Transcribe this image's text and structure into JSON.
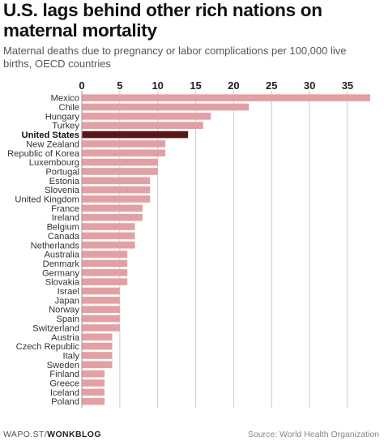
{
  "header": {
    "title": "U.S. lags behind other rich nations on maternal mortality",
    "subtitle": "Maternal deaths due to pregnancy or labor complications per 100,000 live births, OECD countries"
  },
  "footer": {
    "brand_prefix": "WAPO.ST/",
    "brand_name": "WONKBLOG",
    "source": "Source: World Health Organization"
  },
  "colors": {
    "bar": "#e3a0a4",
    "highlight": "#5c1519",
    "gridline": "#cccccc"
  },
  "chart_data": {
    "type": "bar",
    "orientation": "horizontal",
    "title": "U.S. lags behind other rich nations on maternal mortality",
    "subtitle": "Maternal deaths due to pregnancy or labor complications per 100,000 live births, OECD countries",
    "xlim": [
      0,
      38
    ],
    "xticks": [
      0,
      5,
      10,
      15,
      20,
      25,
      30,
      35
    ],
    "grid": true,
    "highlight": "United States",
    "categories": [
      "Mexico",
      "Chile",
      "Hungary",
      "Turkey",
      "United States",
      "New Zealand",
      "Republic of Korea",
      "Luxembourg",
      "Portugal",
      "Estonia",
      "Slovenia",
      "United Kingdom",
      "France",
      "Ireland",
      "Belgium",
      "Canada",
      "Netherlands",
      "Australia",
      "Denmark",
      "Germany",
      "Slovakia",
      "Israel",
      "Japan",
      "Norway",
      "Spain",
      "Switzerland",
      "Austria",
      "Czech Republic",
      "Italy",
      "Sweden",
      "Finland",
      "Greece",
      "Iceland",
      "Poland"
    ],
    "values": [
      38,
      22,
      17,
      16,
      14,
      11,
      11,
      10,
      10,
      9,
      9,
      9,
      8,
      8,
      7,
      7,
      7,
      6,
      6,
      6,
      6,
      5,
      5,
      5,
      5,
      5,
      4,
      4,
      4,
      4,
      3,
      3,
      3,
      3
    ]
  }
}
